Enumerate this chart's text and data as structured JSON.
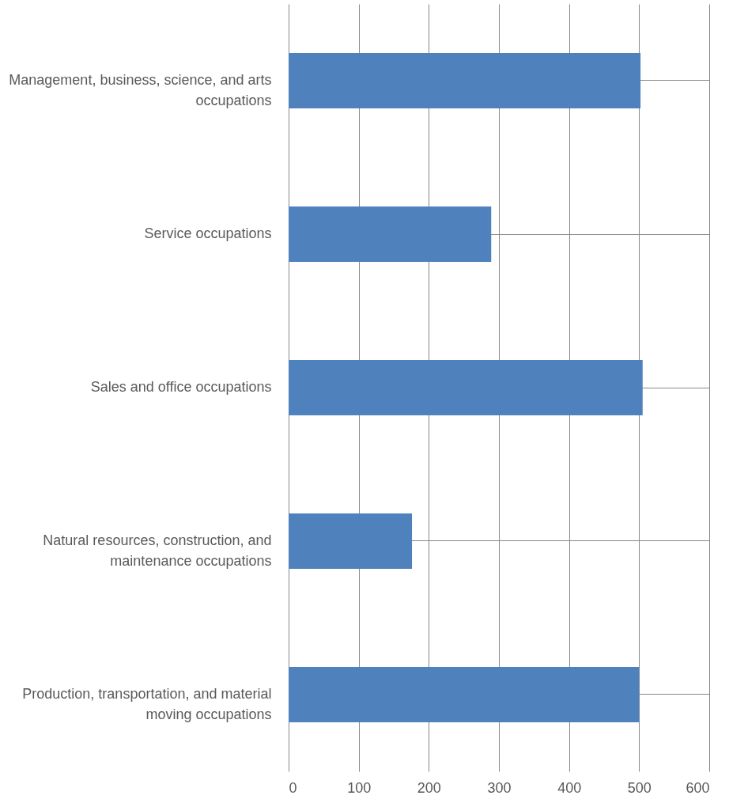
{
  "chart_data": {
    "type": "bar",
    "orientation": "horizontal",
    "categories": [
      "Management, business, science, and arts occupations",
      "Service occupations",
      "Sales and office occupations",
      "Natural resources, construction, and maintenance occupations",
      "Production, transportation, and material moving occupations"
    ],
    "values": [
      502,
      289,
      505,
      176,
      500
    ],
    "color": "#4f81bd",
    "xlim": [
      0,
      600
    ],
    "xticks": [
      0,
      100,
      200,
      300,
      400,
      500,
      600
    ],
    "grid": true
  }
}
